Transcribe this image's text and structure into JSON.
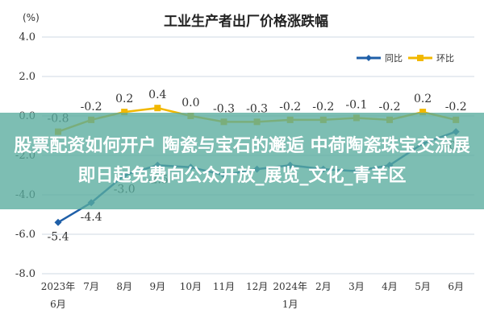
{
  "chart_data": {
    "type": "line",
    "title": "工业生产者出厂价格涨跌幅",
    "unit": "(%)",
    "categories": [
      {
        "line1": "2023年",
        "line2": "6月"
      },
      {
        "line1": "7月",
        "line2": ""
      },
      {
        "line1": "8月",
        "line2": ""
      },
      {
        "line1": "9月",
        "line2": ""
      },
      {
        "line1": "10月",
        "line2": ""
      },
      {
        "line1": "11月",
        "line2": ""
      },
      {
        "line1": "12月",
        "line2": ""
      },
      {
        "line1": "2024年",
        "line2": "1月"
      },
      {
        "line1": "2月",
        "line2": ""
      },
      {
        "line1": "3月",
        "line2": ""
      },
      {
        "line1": "4月",
        "line2": ""
      },
      {
        "line1": "5月",
        "line2": ""
      },
      {
        "line1": "6月",
        "line2": ""
      }
    ],
    "series": [
      {
        "name": "同比",
        "color": "#1f5fa8",
        "values": [
          -5.4,
          -4.4,
          -3.0,
          -2.5,
          -2.6,
          -3.0,
          -2.7,
          -2.5,
          -2.7,
          -2.8,
          -2.5,
          -1.4,
          -0.8
        ],
        "labels": [
          "-5.4",
          "-4.4",
          "-3.0",
          "-2.5",
          "",
          "",
          "",
          "",
          "",
          "",
          "",
          "",
          "-0.8"
        ]
      },
      {
        "name": "环比",
        "color": "#f2b800",
        "values": [
          -0.8,
          -0.2,
          0.2,
          0.4,
          0.0,
          -0.3,
          -0.3,
          -0.2,
          -0.2,
          -0.1,
          -0.2,
          0.2,
          -0.2
        ],
        "labels": [
          "-0.8",
          "-0.2",
          "0.2",
          "0.4",
          "0.0",
          "-0.3",
          "-0.3",
          "-0.2",
          "-0.2",
          "-0.1",
          "-0.2",
          "0.2",
          "-0.2"
        ]
      }
    ],
    "yticks": [
      "4.0",
      "2.0",
      "0.0",
      "-2.0",
      "-4.0",
      "-6.0",
      "-8.0"
    ],
    "ylim": [
      -8,
      4
    ],
    "grid": true,
    "legend_position": "top-right"
  },
  "overlay": {
    "text": "股票配资如何开户 陶瓷与宝石的邂逅 中荷陶瓷珠宝交流展即日起免费向公众开放_展览_文化_青羊区"
  }
}
